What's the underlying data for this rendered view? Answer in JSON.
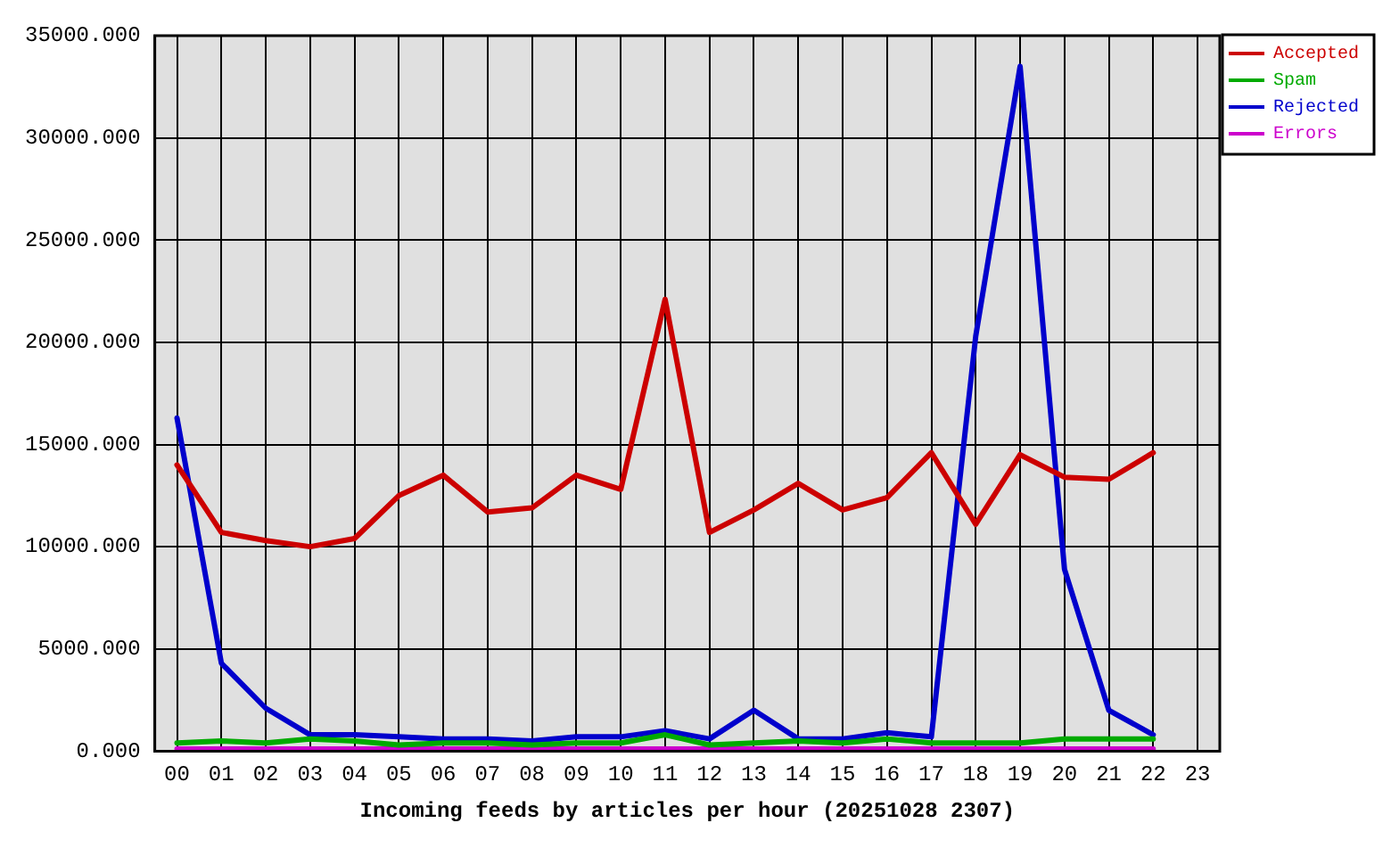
{
  "chart_data": {
    "type": "line",
    "xlabel": "Incoming feeds by articles per hour (20251028 2307)",
    "categories": [
      "00",
      "01",
      "02",
      "03",
      "04",
      "05",
      "06",
      "07",
      "08",
      "09",
      "10",
      "11",
      "12",
      "13",
      "14",
      "15",
      "16",
      "17",
      "18",
      "19",
      "20",
      "21",
      "22",
      "23"
    ],
    "series": [
      {
        "name": "Accepted",
        "color": "#cc0000",
        "values": [
          14000,
          10700,
          10300,
          10000,
          10400,
          12500,
          13500,
          11700,
          11900,
          13500,
          12800,
          22100,
          10700,
          11800,
          13100,
          11800,
          12400,
          14600,
          11100,
          14500,
          13400,
          13300,
          14600,
          null
        ]
      },
      {
        "name": "Spam",
        "color": "#00aa00",
        "values": [
          400,
          500,
          400,
          600,
          500,
          300,
          400,
          400,
          300,
          400,
          400,
          800,
          300,
          400,
          500,
          400,
          600,
          400,
          400,
          400,
          600,
          600,
          600,
          null
        ]
      },
      {
        "name": "Rejected",
        "color": "#0000cc",
        "values": [
          16300,
          4300,
          2100,
          800,
          800,
          700,
          600,
          600,
          500,
          700,
          700,
          1000,
          600,
          2000,
          600,
          600,
          900,
          700,
          20300,
          33500,
          8900,
          2000,
          800,
          null
        ]
      },
      {
        "name": "Errors",
        "color": "#cc00cc",
        "values": [
          100,
          100,
          100,
          100,
          100,
          100,
          100,
          100,
          100,
          100,
          100,
          100,
          100,
          100,
          100,
          100,
          100,
          100,
          100,
          100,
          100,
          100,
          100,
          null
        ]
      }
    ],
    "ylim": [
      0,
      35000
    ],
    "yticks": [
      {
        "value": 0,
        "label": "0.000"
      },
      {
        "value": 5000,
        "label": "5000.000"
      },
      {
        "value": 10000,
        "label": "10000.000"
      },
      {
        "value": 15000,
        "label": "15000.000"
      },
      {
        "value": 20000,
        "label": "20000.000"
      },
      {
        "value": 25000,
        "label": "25000.000"
      },
      {
        "value": 30000,
        "label": "30000.000"
      },
      {
        "value": 35000,
        "label": "35000.000"
      }
    ],
    "grid": true,
    "legend": "top right",
    "marker": "none",
    "line_style": "solid"
  }
}
